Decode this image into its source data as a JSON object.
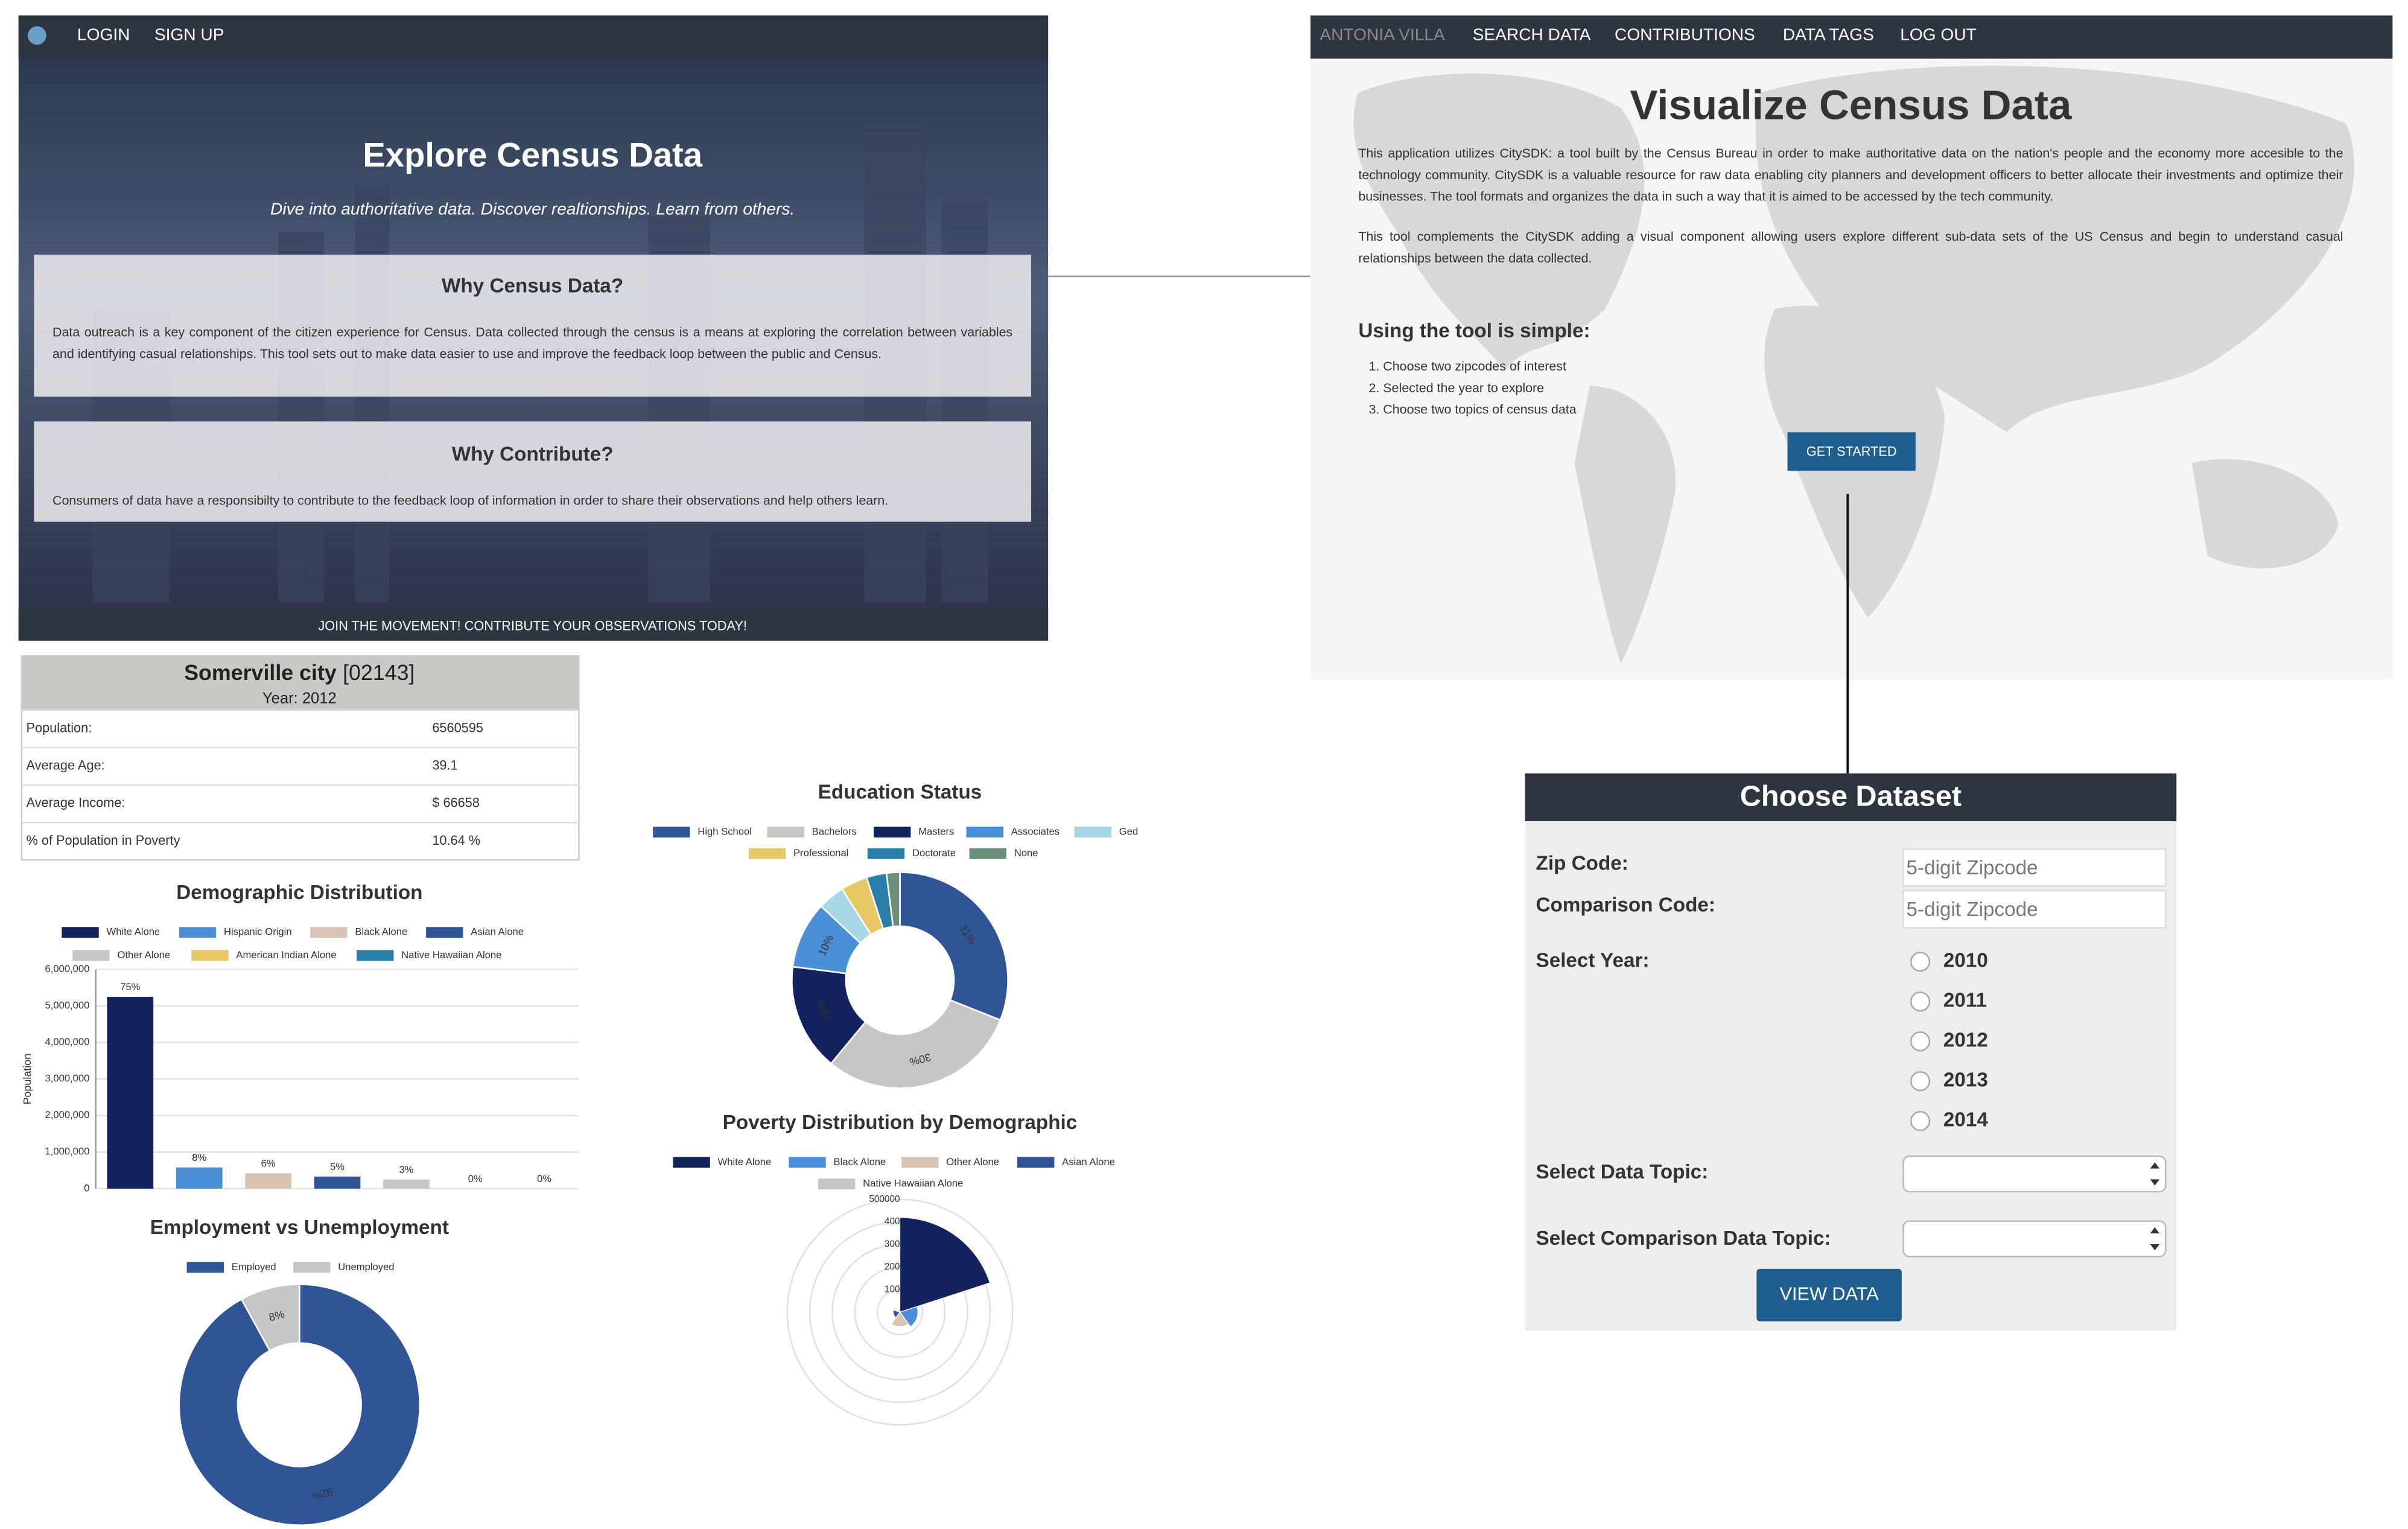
{
  "left_panel": {
    "nav": [
      "LOGIN",
      "SIGN UP"
    ],
    "title": "Explore Census Data",
    "subtitle": "Dive into authoritative data. Discover realtionships. Learn from others.",
    "cards": [
      {
        "title": "Why Census Data?",
        "text": "Data outreach is a key component of the citizen experience for Census. Data collected through the census is a means at exploring the correlation between variables and identifying casual relationships. This tool sets out to make data easier to use and improve the feedback loop between the public and Census."
      },
      {
        "title": "Why Contribute?",
        "text": "Consumers of data have a responsibilty to contribute to the feedback loop of information in order to share their observations and help others learn."
      }
    ],
    "footer": "JOIN THE MOVEMENT! CONTRIBUTE YOUR OBSERVATIONS TODAY!"
  },
  "right_panel": {
    "nav": [
      "ANTONIA VILLA",
      "SEARCH DATA",
      "CONTRIBUTIONS",
      "DATA TAGS",
      "LOG OUT"
    ],
    "title": "Visualize Census Data",
    "paragraphs": [
      "This application utilizes CitySDK: a tool built by the Census Bureau in order to make authoritative data on the nation's people and the economy more accesible to the technology community. CitySDK is a valuable resource for raw data enabling city planners and development officers to better allocate their investments and optimize their businesses. The tool formats and organizes the data in such a way that it is aimed to be accessed by the tech community.",
      "This tool complements the CitySDK adding a visual component allowing users explore different sub-data sets of the US Census and begin to understand casual relationships between the data collected."
    ],
    "subheading": "Using the tool is simple:",
    "steps": [
      "Choose two zipcodes of interest",
      "Selected the year to explore",
      "Choose two topics of census data"
    ],
    "button": "GET STARTED"
  },
  "form": {
    "title": "Choose Dataset",
    "zip_label": "Zip Code:",
    "zip_placeholder": "5-digit Zipcode",
    "comparison_label": "Comparison Code:",
    "comparison_placeholder": "5-digit Zipcode",
    "year_label": "Select Year:",
    "years": [
      "2010",
      "2011",
      "2012",
      "2013",
      "2014"
    ],
    "topic_label": "Select Data Topic:",
    "comparison_topic_label": "Select Comparison Data Topic:",
    "button": "VIEW DATA"
  },
  "summary": {
    "city": "Somerville city",
    "zip": "[02143]",
    "year": "Year: 2012",
    "rows": [
      [
        "Population:",
        "6560595"
      ],
      [
        "Average Age:",
        "39.1"
      ],
      [
        "Average Income:",
        "$ 66658"
      ],
      [
        "% of Population in Poverty",
        "10.64 %"
      ]
    ]
  },
  "chart_data": [
    {
      "type": "bar",
      "title": "Demographic Distribution",
      "ylabel": "Population",
      "categories": [
        "White Alone",
        "Hispanic Origin",
        "Black Alone",
        "Asian Alone",
        "Other Alone",
        "American Indian Alone",
        "Native Hawaiian Alone"
      ],
      "colors": [
        "#14235e",
        "#4a90d9",
        "#d9c3b5",
        "#2f5597",
        "#c6c6c6",
        "#e8c866",
        "#2a7fa8"
      ],
      "values": [
        5250000,
        580000,
        420000,
        330000,
        250000,
        0,
        0
      ],
      "percent_labels": [
        "75%",
        "8%",
        "6%",
        "5%",
        "3%",
        "0%",
        "0%"
      ],
      "ylim": [
        0,
        6000000
      ],
      "yticks": [
        0,
        {
          "value": 1000000,
          "label": "1,000,000"
        },
        {
          "value": 2000000,
          "label": "2,000,000"
        },
        {
          "value": 3000000,
          "label": "3,000,000"
        },
        {
          "value": 4000000,
          "label": "4,000,000"
        },
        {
          "value": 5000000,
          "label": "5,000,000"
        },
        {
          "value": 6000000,
          "label": "6,000,000"
        }
      ],
      "grid": true
    },
    {
      "type": "doughnut",
      "title": "Employment vs Unemployment",
      "categories": [
        "Employed",
        "Unemployed"
      ],
      "colors": [
        "#2f5597",
        "#c6c6c6"
      ],
      "values": [
        92,
        8
      ],
      "value_labels": [
        "92%",
        "8%"
      ]
    },
    {
      "type": "doughnut",
      "title": "Education Status",
      "categories": [
        "High School",
        "Bachelors",
        "Masters",
        "Associates",
        "Ged",
        "Professional",
        "Doctorate",
        "None"
      ],
      "colors": [
        "#2f5597",
        "#c6c6c6",
        "#14235e",
        "#4a90d9",
        "#a8d8e8",
        "#e8c866",
        "#2a7fa8",
        "#6a8f7a"
      ],
      "values": [
        31,
        30,
        16,
        10,
        4,
        4,
        3,
        2
      ],
      "value_labels": [
        "31%",
        "30%",
        "16%",
        "10%",
        null,
        null,
        null,
        null
      ]
    },
    {
      "type": "polar",
      "title": "Poverty Distribution by Demographic",
      "categories": [
        "White Alone",
        "Black Alone",
        "Other Alone",
        "Asian Alone",
        "Native Hawaiian Alone"
      ],
      "colors": [
        "#14235e",
        "#4a90d9",
        "#d9c3b5",
        "#2f5597",
        "#c6c6c6"
      ],
      "values": [
        420,
        80,
        65,
        30,
        10
      ],
      "rlim": [
        0,
        500
      ],
      "rticks": [
        100,
        200,
        300,
        400,
        {
          "value": 500,
          "label": "500000"
        }
      ]
    }
  ]
}
